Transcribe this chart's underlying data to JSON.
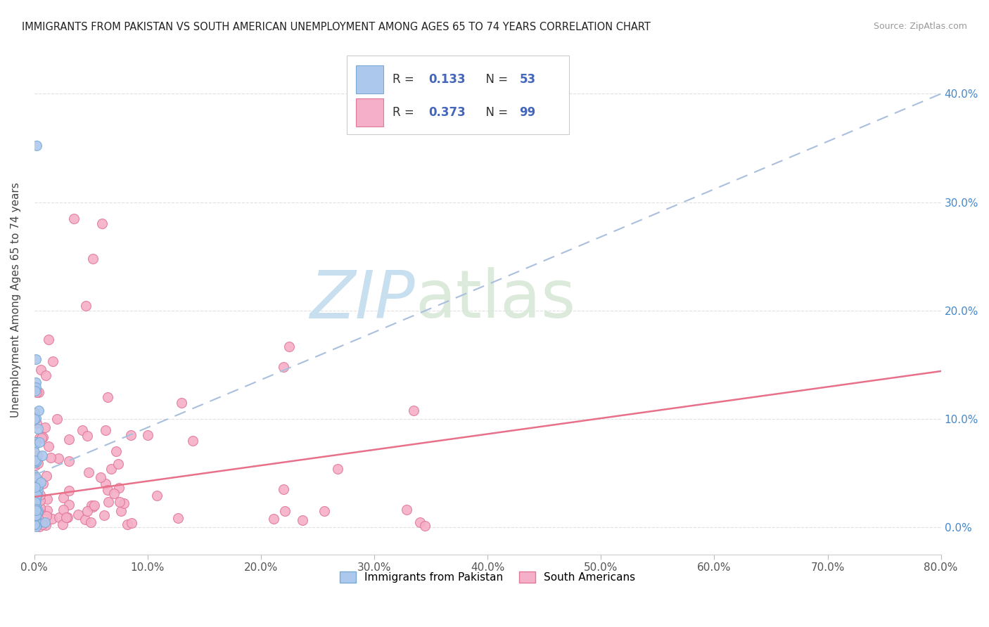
{
  "title": "IMMIGRANTS FROM PAKISTAN VS SOUTH AMERICAN UNEMPLOYMENT AMONG AGES 65 TO 74 YEARS CORRELATION CHART",
  "source": "Source: ZipAtlas.com",
  "ylabel": "Unemployment Among Ages 65 to 74 years",
  "xlim": [
    0.0,
    0.8
  ],
  "ylim": [
    -0.025,
    0.445
  ],
  "yticks": [
    0.0,
    0.1,
    0.2,
    0.3,
    0.4
  ],
  "xticks": [
    0.0,
    0.1,
    0.2,
    0.3,
    0.4,
    0.5,
    0.6,
    0.7,
    0.8
  ],
  "pakistan_color": "#adc8ed",
  "pakistan_edge": "#7aaad4",
  "south_american_color": "#f5afc8",
  "south_american_edge": "#e07898",
  "pakistan_trendline_color": "#aabfde",
  "south_american_trendline_color": "#e8708a",
  "R_pakistan": 0.133,
  "N_pakistan": 53,
  "R_south_american": 0.373,
  "N_south_american": 99,
  "legend_color": "#4466bb",
  "watermark_zip_color": "#c8dff0",
  "watermark_atlas_color": "#c8dff0",
  "background_color": "#ffffff",
  "grid_color": "#e0e0e0",
  "pakistan_trendline_intercept": 0.048,
  "pakistan_trendline_slope": 0.44,
  "south_american_trendline_intercept": 0.028,
  "south_american_trendline_slope": 0.145
}
